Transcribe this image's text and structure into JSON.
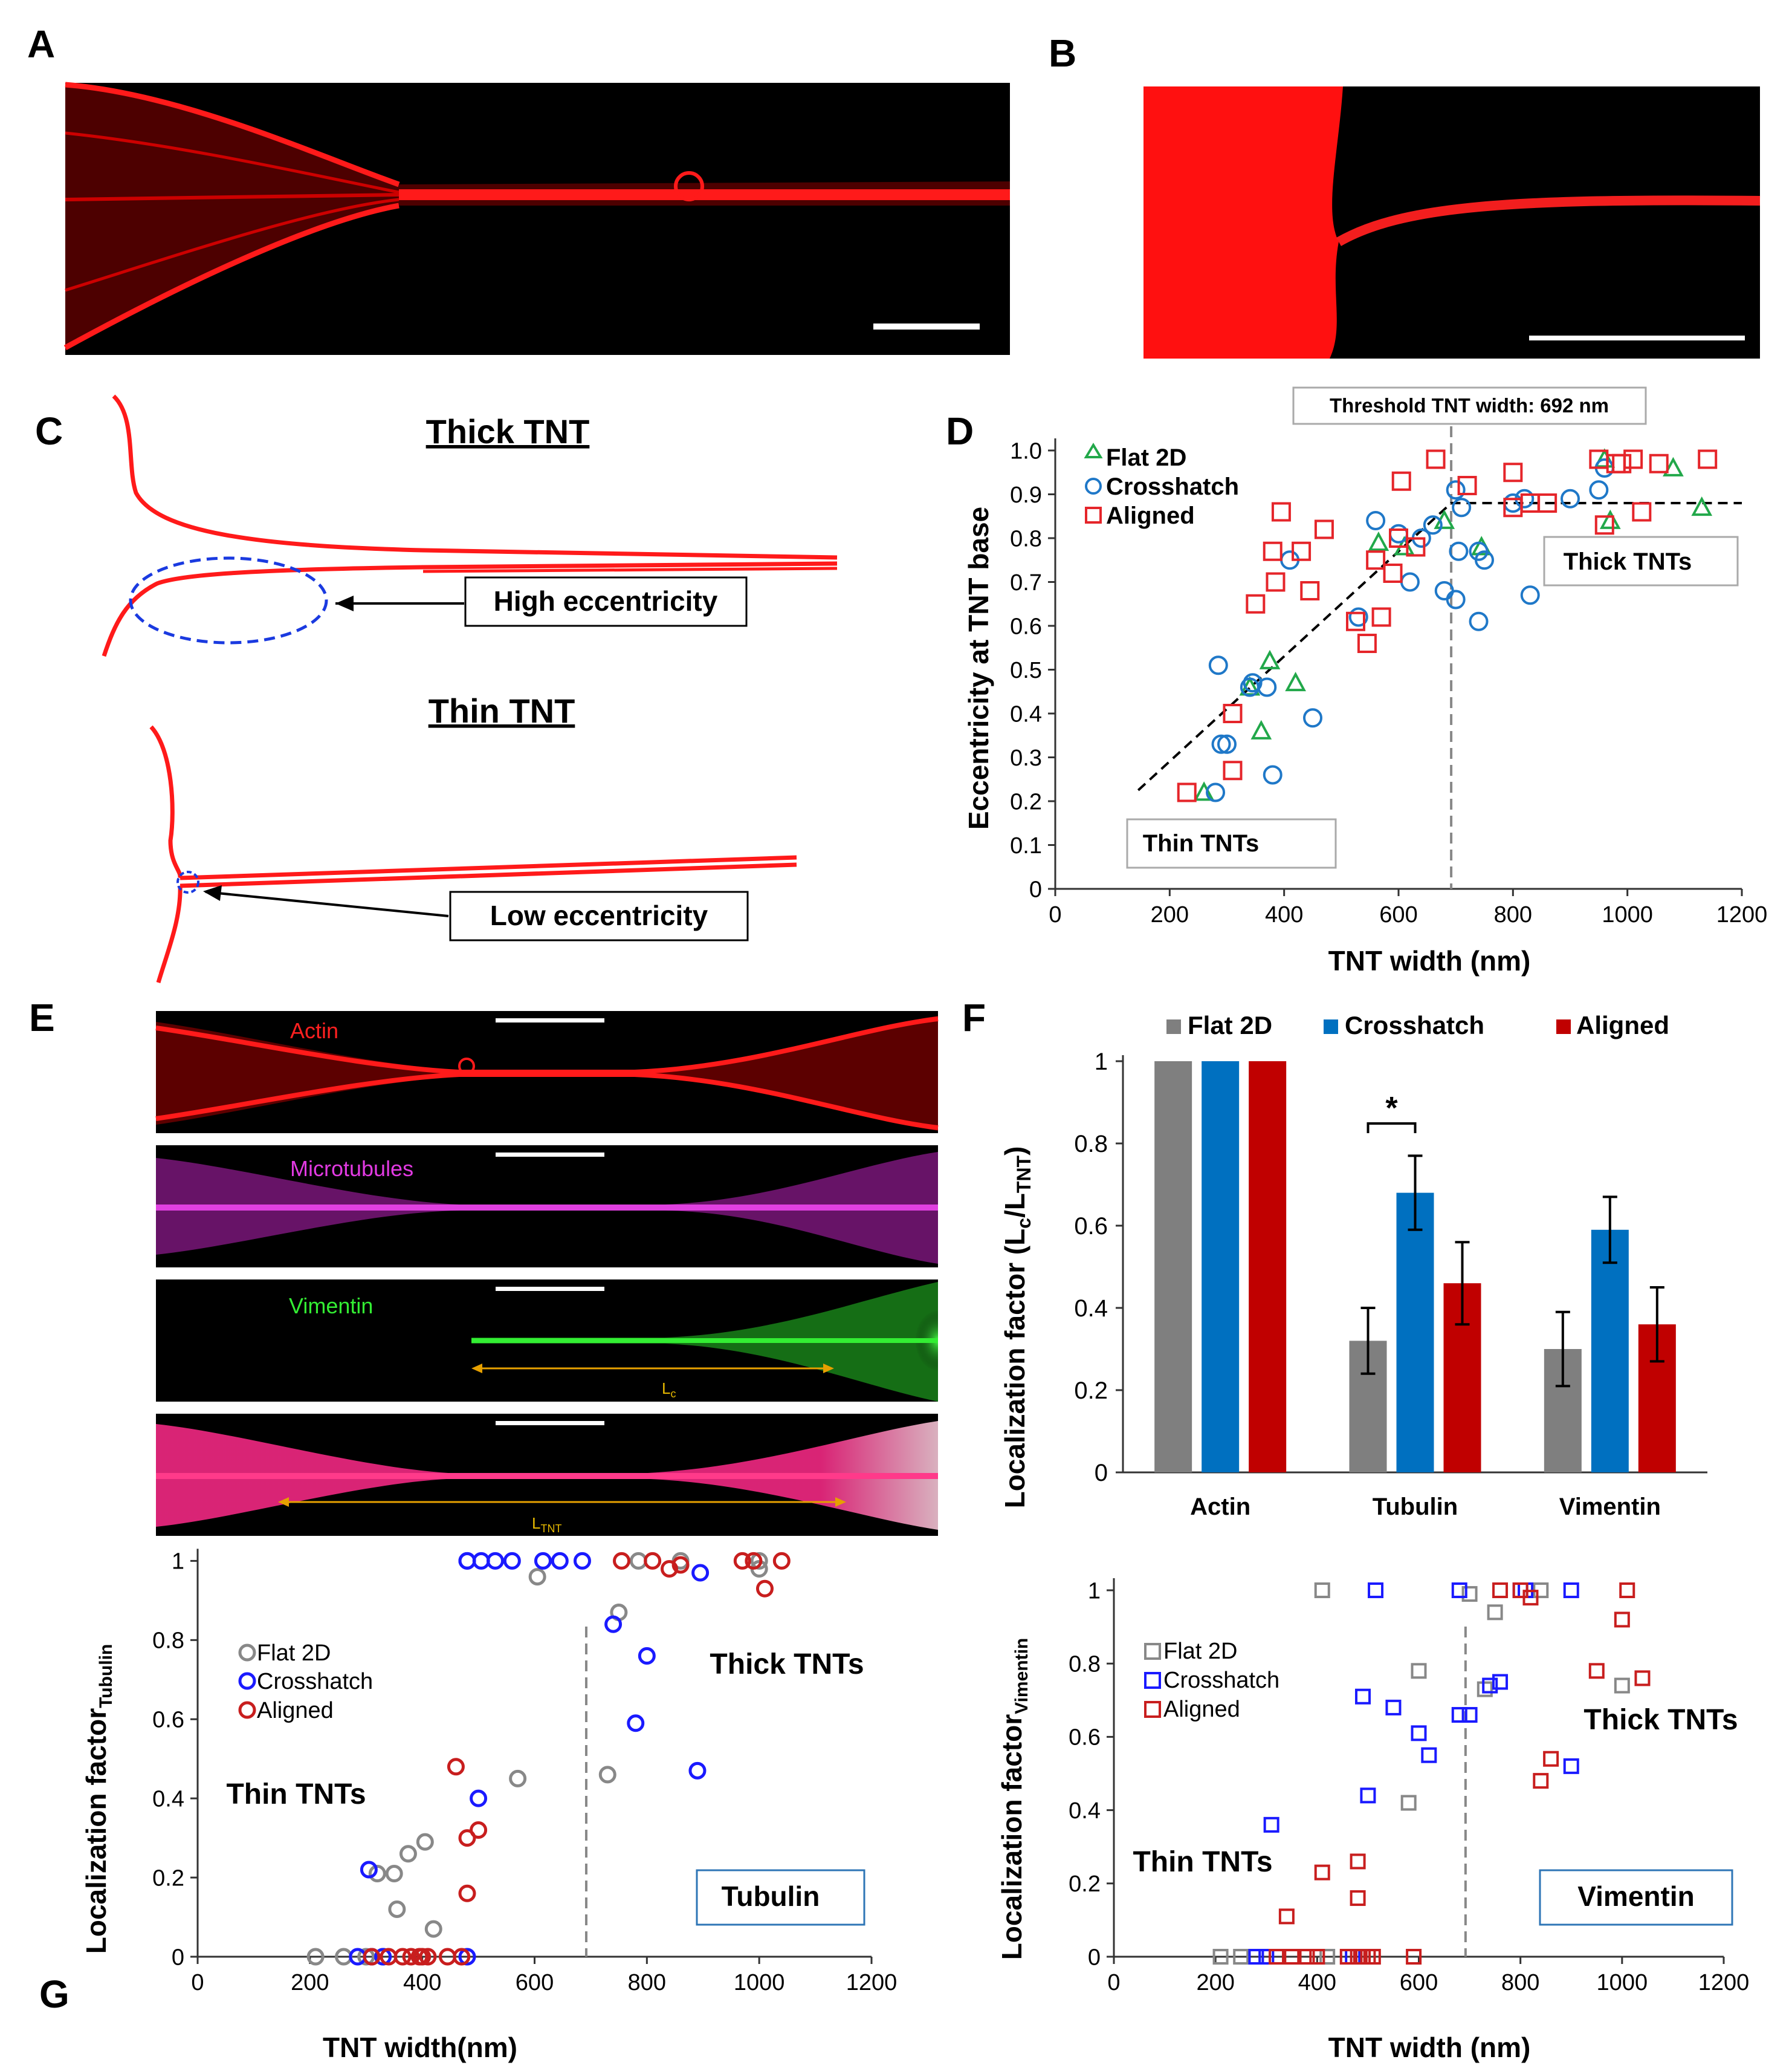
{
  "panel_labels": [
    "A",
    "B",
    "C",
    "D",
    "E",
    "F",
    "G"
  ],
  "colors": {
    "actin_red": "#ff1a1a",
    "flat2d_green": "#22a84a",
    "crosshatch_blue": "#1f78c8",
    "aligned_red": "#e5252a",
    "bar_gray": "#7f7f7f",
    "bar_blue": "#0070c0",
    "bar_red": "#c00000",
    "micro_magenta": "#d41fd4",
    "vimentin_green": "#22dd22",
    "g_gray": "#888888",
    "g_blue": "#1a1aff",
    "g_red": "#c81e1e"
  },
  "panel_C": {
    "thick_title": "Thick TNT",
    "thin_title": "Thin TNT",
    "high_label": "High eccentricity",
    "low_label": "Low eccentricity"
  },
  "panel_E": {
    "channels": [
      "Actin",
      "Microtubules",
      "Vimentin"
    ],
    "lc_label": "L",
    "lc_sub": "c",
    "ltnt_label": "L",
    "ltnt_sub": "TNT"
  },
  "chart_data": [
    {
      "id": "D",
      "type": "scatter",
      "xlabel": "TNT width (nm)",
      "ylabel": "Eccentricity at TNT base",
      "xlim": [
        0,
        1200
      ],
      "ylim": [
        0,
        1.0
      ],
      "xticks": [
        "0",
        "200",
        "400",
        "600",
        "800",
        "1000",
        "1200"
      ],
      "yticks": [
        "0",
        "0.1",
        "0.2",
        "0.3",
        "0.4",
        "0.5",
        "0.6",
        "0.7",
        "0.8",
        "0.9",
        "1.0"
      ],
      "threshold_label": "Threshold TNT width: 692 nm",
      "threshold_x": 692,
      "legend": [
        "Flat 2D",
        "Crosshatch",
        "Aligned"
      ],
      "annotations": [
        "Thin TNTs",
        "Thick TNTs"
      ],
      "trend_line": [
        [
          145,
          0.225
        ],
        [
          692,
          0.88
        ],
        [
          1200,
          0.88
        ]
      ],
      "series": [
        {
          "name": "Flat 2D",
          "marker": "triangle",
          "points": [
            [
              260,
              0.22
            ],
            [
              340,
              0.46
            ],
            [
              360,
              0.36
            ],
            [
              375,
              0.52
            ],
            [
              420,
              0.47
            ],
            [
              565,
              0.79
            ],
            [
              610,
              0.78
            ],
            [
              680,
              0.84
            ],
            [
              745,
              0.78
            ],
            [
              970,
              0.84
            ],
            [
              1080,
              0.96
            ],
            [
              1130,
              0.87
            ],
            [
              960,
              0.98
            ]
          ]
        },
        {
          "name": "Crosshatch",
          "marker": "circle",
          "points": [
            [
              280,
              0.22
            ],
            [
              285,
              0.51
            ],
            [
              290,
              0.33
            ],
            [
              300,
              0.33
            ],
            [
              340,
              0.46
            ],
            [
              345,
              0.47
            ],
            [
              370,
              0.46
            ],
            [
              380,
              0.26
            ],
            [
              410,
              0.75
            ],
            [
              450,
              0.39
            ],
            [
              530,
              0.62
            ],
            [
              560,
              0.84
            ],
            [
              600,
              0.81
            ],
            [
              620,
              0.7
            ],
            [
              640,
              0.8
            ],
            [
              660,
              0.83
            ],
            [
              680,
              0.68
            ],
            [
              700,
              0.91
            ],
            [
              700,
              0.66
            ],
            [
              705,
              0.77
            ],
            [
              710,
              0.87
            ],
            [
              740,
              0.77
            ],
            [
              740,
              0.61
            ],
            [
              750,
              0.75
            ],
            [
              800,
              0.88
            ],
            [
              820,
              0.89
            ],
            [
              830,
              0.67
            ],
            [
              900,
              0.89
            ],
            [
              950,
              0.91
            ],
            [
              960,
              0.96
            ]
          ]
        },
        {
          "name": "Aligned",
          "marker": "square",
          "points": [
            [
              230,
              0.22
            ],
            [
              310,
              0.4
            ],
            [
              310,
              0.27
            ],
            [
              350,
              0.65
            ],
            [
              380,
              0.77
            ],
            [
              385,
              0.7
            ],
            [
              395,
              0.86
            ],
            [
              430,
              0.77
            ],
            [
              445,
              0.68
            ],
            [
              470,
              0.82
            ],
            [
              525,
              0.61
            ],
            [
              545,
              0.56
            ],
            [
              560,
              0.75
            ],
            [
              570,
              0.62
            ],
            [
              590,
              0.72
            ],
            [
              600,
              0.8
            ],
            [
              605,
              0.93
            ],
            [
              630,
              0.78
            ],
            [
              665,
              0.98
            ],
            [
              720,
              0.92
            ],
            [
              800,
              0.95
            ],
            [
              800,
              0.87
            ],
            [
              830,
              0.88
            ],
            [
              860,
              0.88
            ],
            [
              950,
              0.98
            ],
            [
              960,
              0.83
            ],
            [
              980,
              0.97
            ],
            [
              990,
              0.97
            ],
            [
              1010,
              0.98
            ],
            [
              1025,
              0.86
            ],
            [
              1055,
              0.97
            ],
            [
              1140,
              0.98
            ]
          ]
        }
      ]
    },
    {
      "id": "F",
      "type": "bar",
      "ylabel": "Localization factor (L",
      "ylabel_sub_c": "c",
      "ylabel_mid": "/L",
      "ylabel_sub_tnt": "TNT",
      "ylabel_end": ")",
      "ylim": [
        0,
        1
      ],
      "yticks": [
        "0",
        "0.2",
        "0.4",
        "0.6",
        "0.8",
        "1"
      ],
      "categories": [
        "Actin",
        "Tubulin",
        "Vimentin"
      ],
      "series": [
        {
          "name": "Flat 2D",
          "values": [
            1.0,
            0.32,
            0.3
          ],
          "errors": [
            0,
            0.08,
            0.09
          ]
        },
        {
          "name": "Crosshatch",
          "values": [
            1.0,
            0.68,
            0.59
          ],
          "errors": [
            0,
            0.09,
            0.08
          ]
        },
        {
          "name": "Aligned",
          "values": [
            1.0,
            0.46,
            0.36
          ],
          "errors": [
            0,
            0.1,
            0.09
          ]
        }
      ],
      "significance": "*"
    },
    {
      "id": "G-tubulin",
      "type": "scatter",
      "ylabel": "Localization factor",
      "ylabel_sub": "Tubulin",
      "xlabel": "TNT width(nm)",
      "xlim": [
        0,
        1200
      ],
      "ylim": [
        0,
        1
      ],
      "xticks": [
        "0",
        "200",
        "400",
        "600",
        "800",
        "1000",
        "1200"
      ],
      "yticks": [
        "0",
        "0.2",
        "0.4",
        "0.6",
        "0.8",
        "1"
      ],
      "threshold_x": 692,
      "legend": [
        "Flat 2D",
        "Crosshatch",
        "Aligned"
      ],
      "annotations": [
        "Thin TNTs",
        "Thick TNTs"
      ],
      "box_label": "Tubulin",
      "series": [
        {
          "name": "Flat 2D",
          "marker": "circle",
          "points": [
            [
              210,
              0
            ],
            [
              260,
              0
            ],
            [
              300,
              0
            ],
            [
              330,
              0
            ],
            [
              320,
              0.21
            ],
            [
              350,
              0.21
            ],
            [
              355,
              0.12
            ],
            [
              375,
              0.26
            ],
            [
              405,
              0.29
            ],
            [
              420,
              0.07
            ],
            [
              570,
              0.45
            ],
            [
              605,
              0.96
            ],
            [
              730,
              0.46
            ],
            [
              750,
              0.87
            ],
            [
              785,
              1.0
            ],
            [
              860,
              1.0
            ],
            [
              1000,
              1.0
            ],
            [
              1000,
              0.98
            ]
          ]
        },
        {
          "name": "Crosshatch",
          "marker": "circle",
          "points": [
            [
              285,
              0
            ],
            [
              310,
              0
            ],
            [
              330,
              0
            ],
            [
              305,
              0.22
            ],
            [
              480,
              1.0
            ],
            [
              500,
              0.4
            ],
            [
              480,
              0
            ],
            [
              480,
              1.0
            ],
            [
              505,
              1.0
            ],
            [
              530,
              1.0
            ],
            [
              560,
              1.0
            ],
            [
              615,
              1.0
            ],
            [
              645,
              1.0
            ],
            [
              685,
              1.0
            ],
            [
              740,
              0.84
            ],
            [
              780,
              0.59
            ],
            [
              800,
              0.76
            ],
            [
              895,
              0.97
            ],
            [
              890,
              0.47
            ]
          ]
        },
        {
          "name": "Aligned",
          "marker": "circle",
          "points": [
            [
              310,
              0
            ],
            [
              340,
              0
            ],
            [
              365,
              0
            ],
            [
              380,
              0
            ],
            [
              395,
              0
            ],
            [
              400,
              0
            ],
            [
              410,
              0
            ],
            [
              445,
              0
            ],
            [
              460,
              0.48
            ],
            [
              480,
              0.3
            ],
            [
              480,
              0.16
            ],
            [
              500,
              0.32
            ],
            [
              470,
              0
            ],
            [
              755,
              1.0
            ],
            [
              810,
              1.0
            ],
            [
              840,
              0.98
            ],
            [
              860,
              0.99
            ],
            [
              970,
              1.0
            ],
            [
              990,
              1.0
            ],
            [
              1010,
              0.93
            ],
            [
              1040,
              1.0
            ]
          ]
        }
      ]
    },
    {
      "id": "G-vimentin",
      "type": "scatter",
      "ylabel": "Localization factor",
      "ylabel_sub": "Vimentin",
      "xlabel": "TNT width (nm)",
      "xlim": [
        0,
        1200
      ],
      "ylim": [
        0,
        1
      ],
      "xticks": [
        "0",
        "200",
        "400",
        "600",
        "800",
        "1000",
        "1200"
      ],
      "yticks": [
        "0",
        "0.2",
        "0.4",
        "0.6",
        "0.8",
        "1"
      ],
      "threshold_x": 692,
      "legend": [
        "Flat 2D",
        "Crosshatch",
        "Aligned"
      ],
      "annotations": [
        "Thin TNTs",
        "Thick TNTs"
      ],
      "box_label": "Vimentin",
      "series": [
        {
          "name": "Flat 2D",
          "marker": "square",
          "points": [
            [
              210,
              0
            ],
            [
              250,
              0
            ],
            [
              300,
              0
            ],
            [
              410,
              1.0
            ],
            [
              420,
              0
            ],
            [
              580,
              0.42
            ],
            [
              600,
              0.78
            ],
            [
              700,
              0.99
            ],
            [
              730,
              0.73
            ],
            [
              750,
              0.94
            ],
            [
              840,
              1.0
            ],
            [
              1000,
              0.74
            ]
          ]
        },
        {
          "name": "Crosshatch",
          "marker": "square",
          "points": [
            [
              280,
              0
            ],
            [
              300,
              0
            ],
            [
              310,
              0.36
            ],
            [
              470,
              0
            ],
            [
              490,
              0.71
            ],
            [
              500,
              0.44
            ],
            [
              515,
              1.0
            ],
            [
              550,
              0.68
            ],
            [
              600,
              0.61
            ],
            [
              620,
              0.55
            ],
            [
              680,
              0.66
            ],
            [
              680,
              1.0
            ],
            [
              700,
              0.66
            ],
            [
              740,
              0.74
            ],
            [
              760,
              0.75
            ],
            [
              800,
              1.0
            ],
            [
              810,
              1.0
            ],
            [
              900,
              1.0
            ],
            [
              900,
              0.52
            ]
          ]
        },
        {
          "name": "Aligned",
          "marker": "square",
          "points": [
            [
              320,
              0
            ],
            [
              340,
              0.11
            ],
            [
              350,
              0
            ],
            [
              380,
              0
            ],
            [
              400,
              0
            ],
            [
              410,
              0.23
            ],
            [
              460,
              0
            ],
            [
              480,
              0
            ],
            [
              490,
              0
            ],
            [
              480,
              0.26
            ],
            [
              480,
              0.16
            ],
            [
              500,
              0
            ],
            [
              510,
              0
            ],
            [
              590,
              0
            ],
            [
              760,
              1.0
            ],
            [
              800,
              1.0
            ],
            [
              820,
              0.98
            ],
            [
              840,
              0.48
            ],
            [
              860,
              0.54
            ],
            [
              950,
              0.78
            ],
            [
              1000,
              0.92
            ],
            [
              1010,
              1.0
            ],
            [
              1040,
              0.76
            ]
          ]
        }
      ]
    }
  ]
}
